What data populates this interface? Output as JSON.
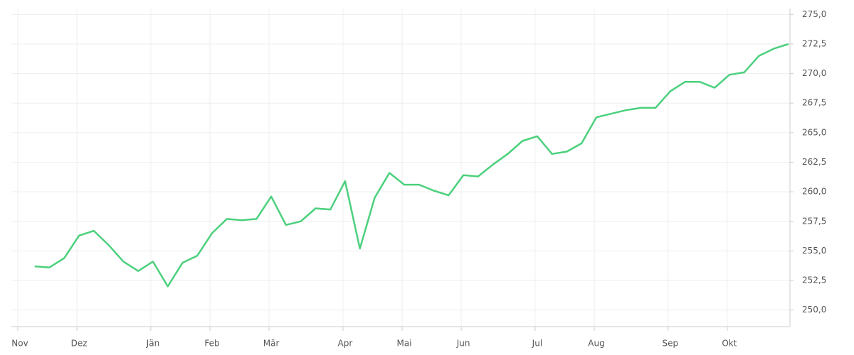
{
  "chart_data": {
    "type": "line",
    "categories": [
      "Nov",
      null,
      null,
      null,
      "Dez",
      null,
      null,
      null,
      null,
      "Jän",
      null,
      null,
      null,
      "Feb",
      null,
      null,
      null,
      "Mär",
      null,
      null,
      null,
      null,
      "Apr",
      null,
      null,
      null,
      "Mai",
      null,
      null,
      null,
      "Jun",
      null,
      null,
      null,
      null,
      "Jul",
      null,
      null,
      null,
      "Aug",
      null,
      null,
      null,
      null,
      "Sep",
      null,
      null,
      null,
      "Okt",
      null,
      null,
      null,
      null
    ],
    "series": [
      {
        "color": "#4cd07d",
        "values": [
          null,
          253.7,
          253.6,
          254.4,
          256.3,
          256.7,
          255.5,
          254.1,
          253.3,
          254.1,
          252.0,
          254.0,
          254.6,
          256.5,
          257.7,
          257.6,
          257.7,
          259.6,
          257.2,
          257.5,
          258.6,
          258.5,
          260.9,
          255.2,
          259.5,
          261.6,
          260.6,
          260.6,
          260.1,
          259.7,
          261.4,
          261.3,
          262.3,
          263.2,
          264.3,
          264.7,
          263.2,
          263.4,
          264.1,
          266.3,
          266.6,
          266.9,
          267.1,
          267.1,
          268.5,
          269.3,
          269.3,
          268.8,
          269.9,
          270.1,
          271.5,
          272.1,
          272.5
        ]
      }
    ],
    "ylim": [
      248.6,
      275.5
    ],
    "yticks": [
      {
        "value": 250,
        "label": "250,0"
      },
      {
        "value": 252.5,
        "label": "252,5"
      },
      {
        "value": 255,
        "label": "255,0"
      },
      {
        "value": 257.5,
        "label": "257,5"
      },
      {
        "value": 260,
        "label": "260,0"
      },
      {
        "value": 262.5,
        "label": "262,5"
      },
      {
        "value": 265,
        "label": "265,0"
      },
      {
        "value": 267.5,
        "label": "267,5"
      },
      {
        "value": 270,
        "label": "270,0"
      },
      {
        "value": 272.5,
        "label": "272,5"
      },
      {
        "value": 275,
        "label": "275,0"
      }
    ],
    "grid": true
  }
}
